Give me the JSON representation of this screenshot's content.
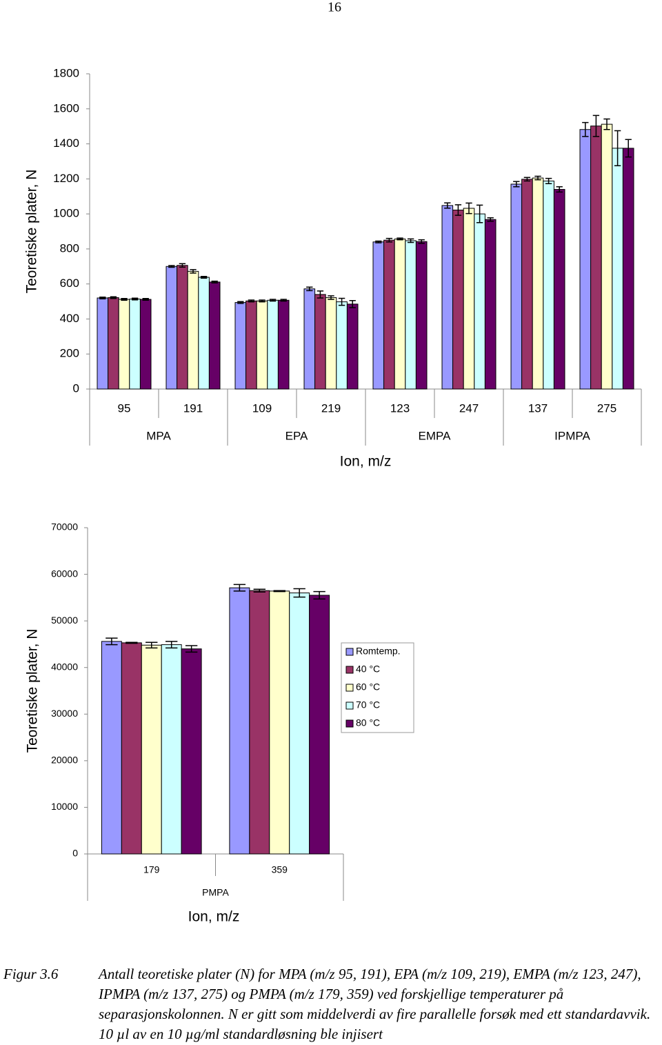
{
  "page_number": "16",
  "chart_data": [
    {
      "type": "bar",
      "ylabel": "Teoretiske plater, N",
      "xlabel": "Ion, m/z",
      "categories": [
        "95",
        "191",
        "109",
        "219",
        "123",
        "247",
        "137",
        "275"
      ],
      "groups": [
        "MPA",
        "EPA",
        "EMPA",
        "IPMPA"
      ],
      "ylim": [
        0,
        1800
      ],
      "yticks": [
        0,
        200,
        400,
        600,
        800,
        1000,
        1200,
        1400,
        1600,
        1800
      ],
      "series": [
        {
          "color": "#9999ff",
          "values": [
            520,
            700,
            494,
            572,
            840,
            1048,
            1170,
            1482
          ],
          "errors": [
            5,
            5,
            5,
            10,
            5,
            15,
            15,
            40
          ]
        },
        {
          "color": "#993366",
          "values": [
            522,
            706,
            503,
            540,
            850,
            1022,
            1198,
            1502
          ],
          "errors": [
            5,
            10,
            5,
            20,
            10,
            30,
            10,
            60
          ]
        },
        {
          "color": "#ffffcc",
          "values": [
            512,
            672,
            503,
            522,
            857,
            1032,
            1205,
            1512
          ],
          "errors": [
            5,
            10,
            5,
            10,
            5,
            30,
            10,
            30
          ]
        },
        {
          "color": "#ccffff",
          "values": [
            514,
            638,
            507,
            498,
            847,
            1000,
            1188,
            1375
          ],
          "errors": [
            5,
            5,
            5,
            20,
            10,
            50,
            15,
            100
          ]
        },
        {
          "color": "#660066",
          "values": [
            512,
            611,
            507,
            485,
            842,
            968,
            1140,
            1375
          ],
          "errors": [
            5,
            5,
            5,
            20,
            10,
            10,
            15,
            50
          ]
        }
      ]
    },
    {
      "type": "bar",
      "ylabel": "Teoretiske plater, N",
      "xlabel": "Ion, m/z",
      "categories": [
        "179",
        "359"
      ],
      "groups": [
        "PMPA"
      ],
      "ylim": [
        0,
        70000
      ],
      "yticks": [
        0,
        10000,
        20000,
        30000,
        40000,
        50000,
        60000,
        70000
      ],
      "legend": "right",
      "series": [
        {
          "name": "Romtemp.",
          "color": "#9999ff",
          "values": [
            45600,
            57100
          ],
          "errors": [
            700,
            700
          ]
        },
        {
          "name": "40 °C",
          "color": "#993366",
          "values": [
            45300,
            56500
          ],
          "errors": [
            100,
            300
          ]
        },
        {
          "name": "60 °C",
          "color": "#ffffcc",
          "values": [
            44800,
            56400
          ],
          "errors": [
            600,
            100
          ]
        },
        {
          "name": "70 °C",
          "color": "#ccffff",
          "values": [
            44900,
            56000
          ],
          "errors": [
            700,
            900
          ]
        },
        {
          "name": "80 °C",
          "color": "#660066",
          "values": [
            44000,
            55500
          ],
          "errors": [
            700,
            800
          ]
        }
      ]
    }
  ],
  "caption": {
    "label": "Figur 3.6",
    "text": "Antall teoretiske plater (N) for MPA (m/z 95, 191), EPA (m/z 109, 219), EMPA (m/z 123, 247), IPMPA (m/z 137, 275) og PMPA (m/z 179, 359) ved forskjellige temperaturer på separasjonskolonnen. N er gitt som middelverdi av fire parallelle forsøk med ett standardavvik. 10 µl av en 10 µg/ml standardløsning ble injisert"
  }
}
